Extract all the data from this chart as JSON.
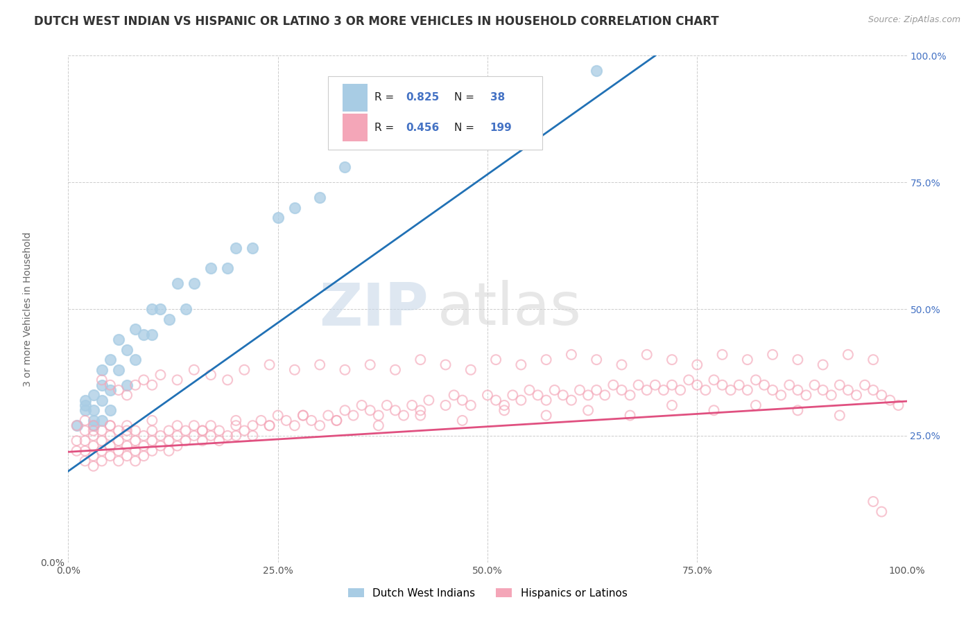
{
  "title": "DUTCH WEST INDIAN VS HISPANIC OR LATINO 3 OR MORE VEHICLES IN HOUSEHOLD CORRELATION CHART",
  "source": "Source: ZipAtlas.com",
  "ylabel": "3 or more Vehicles in Household",
  "xlim": [
    0.0,
    1.0
  ],
  "ylim": [
    0.0,
    1.0
  ],
  "xtick_labels": [
    "0.0%",
    "25.0%",
    "50.0%",
    "75.0%",
    "100.0%"
  ],
  "xtick_values": [
    0.0,
    0.25,
    0.5,
    0.75,
    1.0
  ],
  "ytick_values": [
    0.0,
    0.25,
    0.5,
    0.75,
    1.0
  ],
  "ytick_values_right": [
    0.25,
    0.5,
    0.75,
    1.0
  ],
  "ytick_labels_right": [
    "25.0%",
    "50.0%",
    "75.0%",
    "100.0%"
  ],
  "blue_color": "#a8cce4",
  "pink_color": "#f4a6b8",
  "blue_line_color": "#2171b5",
  "pink_line_color": "#e05080",
  "blue_R": 0.825,
  "blue_N": 38,
  "pink_R": 0.456,
  "pink_N": 199,
  "legend_labels": [
    "Dutch West Indians",
    "Hispanics or Latinos"
  ],
  "watermark_zip": "ZIP",
  "watermark_atlas": "atlas",
  "background_color": "#ffffff",
  "plot_bg_color": "#ffffff",
  "title_fontsize": 12,
  "axis_label_fontsize": 10,
  "tick_fontsize": 10,
  "right_tick_color": "#4472c4",
  "blue_scatter_x": [
    0.01,
    0.02,
    0.02,
    0.02,
    0.03,
    0.03,
    0.03,
    0.03,
    0.04,
    0.04,
    0.04,
    0.04,
    0.05,
    0.05,
    0.05,
    0.06,
    0.06,
    0.07,
    0.07,
    0.08,
    0.08,
    0.09,
    0.1,
    0.1,
    0.11,
    0.12,
    0.13,
    0.14,
    0.15,
    0.17,
    0.19,
    0.2,
    0.22,
    0.25,
    0.27,
    0.3,
    0.33,
    0.63
  ],
  "blue_scatter_y": [
    0.27,
    0.3,
    0.31,
    0.32,
    0.27,
    0.28,
    0.3,
    0.33,
    0.28,
    0.32,
    0.35,
    0.38,
    0.3,
    0.34,
    0.4,
    0.38,
    0.44,
    0.35,
    0.42,
    0.4,
    0.46,
    0.45,
    0.45,
    0.5,
    0.5,
    0.48,
    0.55,
    0.5,
    0.55,
    0.58,
    0.58,
    0.62,
    0.62,
    0.68,
    0.7,
    0.72,
    0.78,
    0.97
  ],
  "blue_line_x0": 0.0,
  "blue_line_x1": 0.7,
  "blue_line_y0": 0.18,
  "blue_line_y1": 1.0,
  "pink_line_x0": 0.0,
  "pink_line_x1": 1.0,
  "pink_line_y0": 0.218,
  "pink_line_y1": 0.318,
  "pink_scatter_x": [
    0.01,
    0.01,
    0.01,
    0.02,
    0.02,
    0.02,
    0.02,
    0.02,
    0.03,
    0.03,
    0.03,
    0.03,
    0.03,
    0.04,
    0.04,
    0.04,
    0.04,
    0.05,
    0.05,
    0.05,
    0.05,
    0.06,
    0.06,
    0.06,
    0.06,
    0.07,
    0.07,
    0.07,
    0.07,
    0.08,
    0.08,
    0.08,
    0.08,
    0.09,
    0.09,
    0.09,
    0.1,
    0.1,
    0.1,
    0.11,
    0.11,
    0.12,
    0.12,
    0.12,
    0.13,
    0.13,
    0.14,
    0.14,
    0.15,
    0.15,
    0.16,
    0.16,
    0.17,
    0.17,
    0.18,
    0.18,
    0.19,
    0.2,
    0.2,
    0.21,
    0.22,
    0.22,
    0.23,
    0.24,
    0.25,
    0.26,
    0.27,
    0.28,
    0.29,
    0.3,
    0.31,
    0.32,
    0.33,
    0.34,
    0.35,
    0.36,
    0.37,
    0.38,
    0.39,
    0.4,
    0.41,
    0.42,
    0.43,
    0.45,
    0.46,
    0.47,
    0.48,
    0.5,
    0.51,
    0.52,
    0.53,
    0.54,
    0.55,
    0.56,
    0.57,
    0.58,
    0.59,
    0.6,
    0.61,
    0.62,
    0.63,
    0.64,
    0.65,
    0.66,
    0.67,
    0.68,
    0.69,
    0.7,
    0.71,
    0.72,
    0.73,
    0.74,
    0.75,
    0.76,
    0.77,
    0.78,
    0.79,
    0.8,
    0.81,
    0.82,
    0.83,
    0.84,
    0.85,
    0.86,
    0.87,
    0.88,
    0.89,
    0.9,
    0.91,
    0.92,
    0.93,
    0.94,
    0.95,
    0.96,
    0.97,
    0.98,
    0.99,
    0.04,
    0.05,
    0.06,
    0.07,
    0.08,
    0.09,
    0.1,
    0.11,
    0.13,
    0.15,
    0.17,
    0.19,
    0.21,
    0.24,
    0.27,
    0.3,
    0.33,
    0.36,
    0.39,
    0.42,
    0.45,
    0.48,
    0.51,
    0.54,
    0.57,
    0.6,
    0.63,
    0.66,
    0.69,
    0.72,
    0.75,
    0.78,
    0.81,
    0.84,
    0.87,
    0.9,
    0.93,
    0.96,
    0.03,
    0.05,
    0.07,
    0.1,
    0.13,
    0.16,
    0.2,
    0.24,
    0.28,
    0.32,
    0.37,
    0.42,
    0.47,
    0.52,
    0.57,
    0.62,
    0.67,
    0.72,
    0.77,
    0.82,
    0.87,
    0.92,
    0.97,
    0.96
  ],
  "pink_scatter_y": [
    0.24,
    0.27,
    0.22,
    0.26,
    0.24,
    0.28,
    0.22,
    0.2,
    0.25,
    0.23,
    0.27,
    0.21,
    0.19,
    0.24,
    0.22,
    0.26,
    0.2,
    0.23,
    0.25,
    0.21,
    0.27,
    0.22,
    0.24,
    0.26,
    0.2,
    0.23,
    0.25,
    0.21,
    0.27,
    0.22,
    0.24,
    0.2,
    0.26,
    0.23,
    0.25,
    0.21,
    0.24,
    0.22,
    0.26,
    0.23,
    0.25,
    0.24,
    0.26,
    0.22,
    0.25,
    0.23,
    0.26,
    0.24,
    0.25,
    0.27,
    0.24,
    0.26,
    0.25,
    0.27,
    0.24,
    0.26,
    0.25,
    0.27,
    0.25,
    0.26,
    0.27,
    0.25,
    0.28,
    0.27,
    0.29,
    0.28,
    0.27,
    0.29,
    0.28,
    0.27,
    0.29,
    0.28,
    0.3,
    0.29,
    0.31,
    0.3,
    0.29,
    0.31,
    0.3,
    0.29,
    0.31,
    0.3,
    0.32,
    0.31,
    0.33,
    0.32,
    0.31,
    0.33,
    0.32,
    0.31,
    0.33,
    0.32,
    0.34,
    0.33,
    0.32,
    0.34,
    0.33,
    0.32,
    0.34,
    0.33,
    0.34,
    0.33,
    0.35,
    0.34,
    0.33,
    0.35,
    0.34,
    0.35,
    0.34,
    0.35,
    0.34,
    0.36,
    0.35,
    0.34,
    0.36,
    0.35,
    0.34,
    0.35,
    0.34,
    0.36,
    0.35,
    0.34,
    0.33,
    0.35,
    0.34,
    0.33,
    0.35,
    0.34,
    0.33,
    0.35,
    0.34,
    0.33,
    0.35,
    0.34,
    0.33,
    0.32,
    0.31,
    0.36,
    0.35,
    0.34,
    0.33,
    0.35,
    0.36,
    0.35,
    0.37,
    0.36,
    0.38,
    0.37,
    0.36,
    0.38,
    0.39,
    0.38,
    0.39,
    0.38,
    0.39,
    0.38,
    0.4,
    0.39,
    0.38,
    0.4,
    0.39,
    0.4,
    0.41,
    0.4,
    0.39,
    0.41,
    0.4,
    0.39,
    0.41,
    0.4,
    0.41,
    0.4,
    0.39,
    0.41,
    0.4,
    0.26,
    0.27,
    0.26,
    0.28,
    0.27,
    0.26,
    0.28,
    0.27,
    0.29,
    0.28,
    0.27,
    0.29,
    0.28,
    0.3,
    0.29,
    0.3,
    0.29,
    0.31,
    0.3,
    0.31,
    0.3,
    0.29,
    0.1,
    0.12
  ]
}
